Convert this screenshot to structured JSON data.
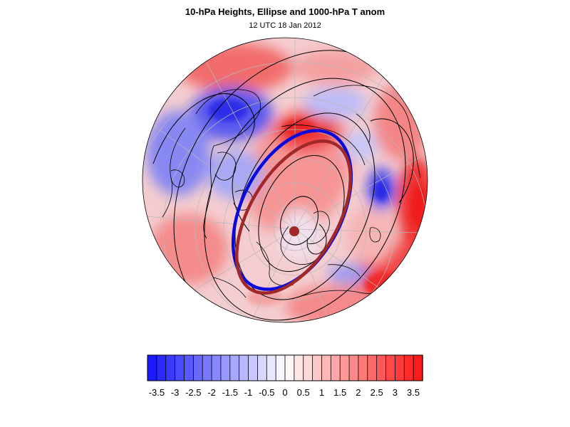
{
  "title": "10-hPa Heights, Ellipse and 1000-hPa T anom",
  "subtitle": "12 UTC 18 Jan 2012",
  "colorbar": {
    "tick_labels": [
      "-3.5",
      "-3",
      "-2.5",
      "-2",
      "-1.5",
      "-1",
      "-0.5",
      "0",
      "0.5",
      "1",
      "1.5",
      "2",
      "2.5",
      "3",
      "3.5"
    ],
    "min": -3.75,
    "max": 3.75,
    "step": 0.25,
    "cold_color": "#1a1aff",
    "warm_color": "#ff1a1a"
  },
  "colors": {
    "ellipse_10hpa": "#0a0adc",
    "ellipse_climatology": "#a02828",
    "contour": "#000000",
    "coastline": "#000000",
    "graticule": "#b8b8b8"
  }
}
